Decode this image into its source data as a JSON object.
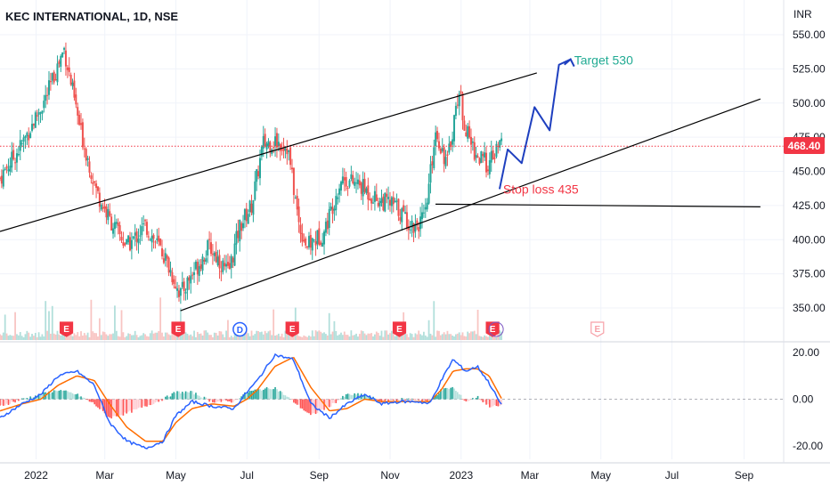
{
  "header": {
    "title": "KEC INTERNATIONAL, 1D, NSE",
    "currency": "INR"
  },
  "price_badge": "468.40",
  "colors": {
    "up": "#26a69a",
    "down": "#ef5350",
    "accent_red": "#f23645",
    "forecast": "#1e3fbf",
    "macd": "#2962ff",
    "signal": "#ff6d00",
    "axis_text": "#131722",
    "trend": "#000000",
    "target_text": "#22ab94",
    "stop_text": "#f23645"
  },
  "chart_data": [
    {
      "type": "candlestick",
      "title": "KEC INTERNATIONAL, 1D, NSE",
      "ylabel": "INR",
      "y_ticks": [
        "550.00",
        "525.00",
        "500.00",
        "475.00",
        "450.00",
        "425.00",
        "400.00",
        "375.00",
        "350.00"
      ],
      "x_ticks": [
        "2022",
        "Mar",
        "May",
        "Jul",
        "Sep",
        "Nov",
        "2023",
        "Mar",
        "May",
        "Jul",
        "Sep"
      ],
      "ylim": [
        330,
        560
      ],
      "last_price": 468.4,
      "price_path": {
        "dates": [
          "2021-12-01",
          "2021-12-20",
          "2022-01-10",
          "2022-01-25",
          "2022-02-08",
          "2022-02-22",
          "2022-03-05",
          "2022-03-20",
          "2022-04-05",
          "2022-04-20",
          "2022-05-05",
          "2022-05-15",
          "2022-05-30",
          "2022-06-15",
          "2022-06-25",
          "2022-07-05",
          "2022-07-15",
          "2022-07-25",
          "2022-08-05",
          "2022-08-15",
          "2022-08-22",
          "2022-09-05",
          "2022-09-20",
          "2022-10-05",
          "2022-10-20",
          "2022-11-05",
          "2022-11-20",
          "2022-12-01",
          "2022-12-10",
          "2022-12-20",
          "2022-12-30",
          "2023-01-05",
          "2023-01-15",
          "2023-01-25",
          "2023-02-05"
        ],
        "close": [
          445,
          470,
          505,
          540,
          480,
          435,
          415,
          395,
          410,
          390,
          360,
          375,
          395,
          375,
          410,
          425,
          470,
          472,
          468,
          410,
          395,
          405,
          445,
          440,
          430,
          425,
          410,
          415,
          480,
          455,
          510,
          480,
          460,
          455,
          472
        ]
      },
      "annotations": {
        "target_label": "Target 530",
        "target_value": 530,
        "stop_label": "Stop loss 435",
        "stop_value": 435,
        "forecast_path": {
          "dates": [
            "2023-02-03",
            "2023-02-10",
            "2023-02-22",
            "2023-03-05",
            "2023-03-18",
            "2023-03-26",
            "2023-04-05"
          ],
          "values": [
            437,
            466,
            456,
            497,
            480,
            528,
            532
          ]
        }
      },
      "upper_channel": {
        "x": [
          "2021-12-01",
          "2023-03-07"
        ],
        "y": [
          406,
          522
        ]
      },
      "lower_channel": {
        "x": [
          "2022-05-05",
          "2023-09-15"
        ],
        "y": [
          348,
          503
        ]
      },
      "horizontal_stop_line": {
        "x": [
          "2022-12-10",
          "2023-09-15"
        ],
        "y": [
          426,
          424
        ]
      },
      "event_markers": {
        "labels": [
          "E",
          "E",
          "D",
          "E",
          "E",
          "E",
          "E"
        ],
        "dates": [
          "2022-01-27",
          "2022-05-03",
          "2022-06-25",
          "2022-08-09",
          "2022-11-09",
          "2023-01-28",
          "2023-04-28"
        ]
      }
    },
    {
      "type": "line",
      "series": [
        {
          "key": "macd",
          "values_dates": [
            "2021-12-01",
            "2021-12-20",
            "2022-01-05",
            "2022-01-20",
            "2022-02-05",
            "2022-02-20",
            "2022-03-05",
            "2022-03-20",
            "2022-04-05",
            "2022-04-20",
            "2022-05-01",
            "2022-05-15",
            "2022-06-01",
            "2022-06-20",
            "2022-07-01",
            "2022-07-10",
            "2022-07-25",
            "2022-08-10",
            "2022-08-25",
            "2022-09-10",
            "2022-09-25",
            "2022-10-10",
            "2022-10-25",
            "2022-11-10",
            "2022-11-25",
            "2022-12-05",
            "2022-12-15",
            "2022-12-25",
            "2023-01-05",
            "2023-01-15",
            "2023-01-25",
            "2023-02-05"
          ],
          "values": [
            -8,
            -2,
            2,
            10,
            12,
            6,
            -10,
            -18,
            -21,
            -18,
            -7,
            -1,
            -3,
            -4,
            3,
            8,
            19,
            17,
            -2,
            -8,
            -2,
            2,
            -2,
            -1,
            -1,
            -2,
            8,
            17,
            12,
            14,
            7,
            -3
          ]
        },
        {
          "key": "signal",
          "values_dates": [
            "2021-12-01",
            "2021-12-20",
            "2022-01-05",
            "2022-01-20",
            "2022-02-05",
            "2022-02-20",
            "2022-03-05",
            "2022-03-20",
            "2022-04-05",
            "2022-04-20",
            "2022-05-01",
            "2022-05-15",
            "2022-06-01",
            "2022-06-20",
            "2022-07-01",
            "2022-07-10",
            "2022-07-25",
            "2022-08-10",
            "2022-08-25",
            "2022-09-10",
            "2022-09-25",
            "2022-10-10",
            "2022-10-25",
            "2022-11-10",
            "2022-11-25",
            "2022-12-05",
            "2022-12-15",
            "2022-12-25",
            "2023-01-05",
            "2023-01-15",
            "2023-01-25",
            "2023-02-05"
          ],
          "values": [
            -5,
            -2,
            0,
            6,
            10,
            8,
            -2,
            -12,
            -18,
            -18,
            -10,
            -4,
            -2,
            -3,
            0,
            4,
            14,
            18,
            5,
            -5,
            -4,
            0,
            -1,
            -1,
            -1,
            -1,
            4,
            12,
            13,
            13,
            10,
            0
          ]
        }
      ],
      "y_ticks": [
        "20.00",
        "0.00",
        "-20.00"
      ],
      "ylim": [
        -24,
        24
      ]
    }
  ]
}
